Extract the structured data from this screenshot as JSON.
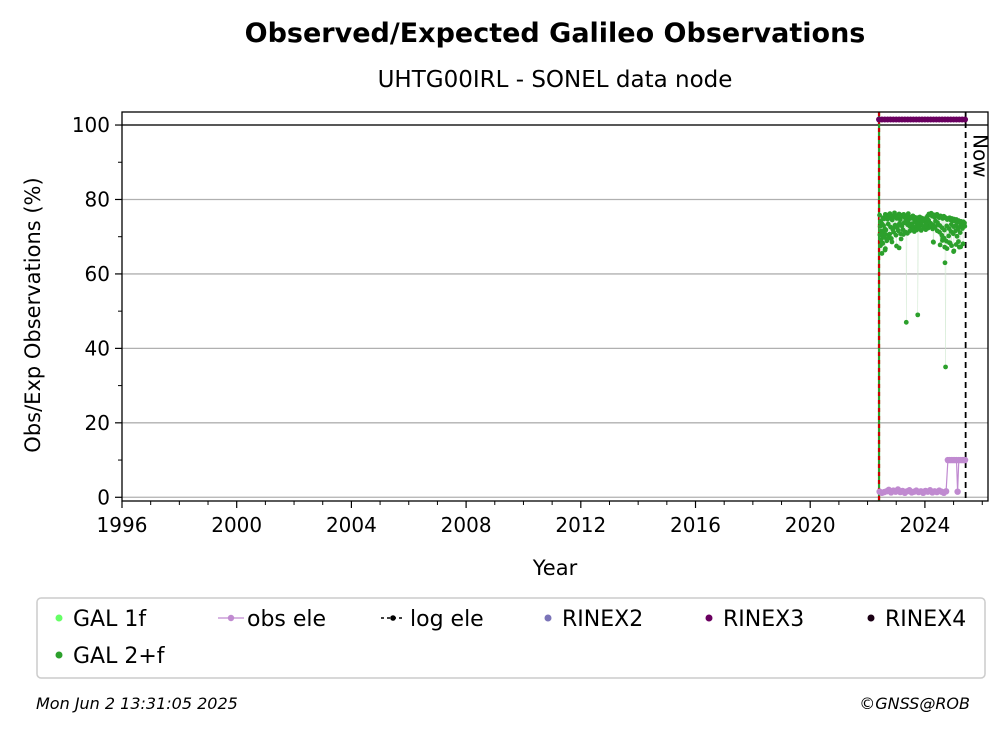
{
  "chart_data": {
    "type": "scatter",
    "title": "Observed/Expected Galileo Observations",
    "subtitle": "UHTG00IRL - SONEL data node",
    "xlabel": "Year",
    "ylabel": "Obs/Exp Observations (%)",
    "xlim": [
      1996,
      2026.2
    ],
    "ylim": [
      -1,
      103.5
    ],
    "x_ticks": [
      "1996",
      "2000",
      "2004",
      "2008",
      "2012",
      "2016",
      "2020",
      "2024"
    ],
    "y_ticks": [
      "0",
      "20",
      "40",
      "60",
      "80",
      "100"
    ],
    "grid": "horizontal",
    "reference_line_y": 100,
    "now_label": "Now",
    "now_x": 2025.42,
    "start_x": 2022.4,
    "legend_position": "bottom",
    "legend": [
      {
        "label": "GAL 1f",
        "color": "#66ff66",
        "marker": "dot"
      },
      {
        "label": "obs ele",
        "color": "#c08ad0",
        "marker": "line-dot"
      },
      {
        "label": "log ele",
        "color": "#000000",
        "marker": "dashed-dot"
      },
      {
        "label": "RINEX2",
        "color": "#7b74b8",
        "marker": "dot"
      },
      {
        "label": "RINEX3",
        "color": "#6a0060",
        "marker": "dot"
      },
      {
        "label": "RINEX4",
        "color": "#1a0014",
        "marker": "dot"
      },
      {
        "label": "GAL 2+f",
        "color": "#2ca02c",
        "marker": "dot"
      }
    ],
    "series": [
      {
        "name": "GAL 2+f",
        "color": "#2ca02c",
        "x": [
          2022.42,
          2022.46,
          2022.5,
          2022.54,
          2022.58,
          2022.62,
          2022.66,
          2022.7,
          2022.74,
          2022.78,
          2022.82,
          2022.86,
          2022.9,
          2022.94,
          2022.98,
          2023.02,
          2023.06,
          2023.1,
          2023.14,
          2023.18,
          2023.22,
          2023.26,
          2023.3,
          2023.34,
          2023.38,
          2023.42,
          2023.46,
          2023.5,
          2023.54,
          2023.58,
          2023.62,
          2023.66,
          2023.7,
          2023.74,
          2023.78,
          2023.82,
          2023.86,
          2023.9,
          2023.94,
          2023.98,
          2024.02,
          2024.06,
          2024.1,
          2024.14,
          2024.18,
          2024.22,
          2024.26,
          2024.3,
          2024.34,
          2024.38,
          2024.42,
          2024.46,
          2024.5,
          2024.54,
          2024.58,
          2024.62,
          2024.66,
          2024.7,
          2024.74,
          2024.78,
          2024.82,
          2024.86,
          2024.9,
          2024.94,
          2024.98,
          2025.02,
          2025.06,
          2025.1,
          2025.14,
          2025.18,
          2025.22,
          2025.26,
          2025.3,
          2025.34,
          2025.38,
          2022.44,
          2022.48,
          2022.52,
          2022.56,
          2022.6,
          2022.64,
          2022.72,
          2022.8,
          2022.88,
          2022.96,
          2023.04,
          2023.12,
          2023.2,
          2023.28,
          2023.4,
          2023.48,
          2023.56,
          2023.64,
          2023.72,
          2023.8,
          2023.88,
          2023.96,
          2024.04,
          2024.12,
          2024.2,
          2024.28,
          2024.36,
          2024.44,
          2024.52,
          2024.6,
          2024.68,
          2024.76,
          2024.84,
          2024.92,
          2025.0,
          2025.08,
          2025.16,
          2025.24,
          2025.32,
          2022.43,
          2022.47,
          2022.51,
          2022.55,
          2022.59,
          2022.63,
          2022.67,
          2022.75,
          2022.83,
          2022.91,
          2022.99,
          2023.07,
          2023.15,
          2023.23,
          2023.31,
          2023.39,
          2023.47,
          2023.55,
          2023.63,
          2023.71,
          2023.79,
          2023.87,
          2023.95,
          2024.03,
          2024.11,
          2024.19,
          2024.27,
          2024.35,
          2024.43,
          2024.51,
          2024.59,
          2024.67,
          2024.75,
          2024.83,
          2024.91,
          2024.99,
          2025.07,
          2025.15,
          2025.23,
          2025.31,
          2025.39,
          2022.45,
          2022.53,
          2022.61,
          2022.69,
          2022.77,
          2022.85,
          2022.93,
          2023.01,
          2023.09,
          2023.17,
          2023.25,
          2023.33,
          2023.41,
          2023.49,
          2023.57,
          2023.65,
          2023.73,
          2023.81,
          2023.89,
          2023.97,
          2024.05,
          2024.13,
          2024.21,
          2024.29,
          2024.37,
          2024.45,
          2024.53,
          2024.61,
          2024.69,
          2024.77,
          2024.85,
          2024.93,
          2025.01,
          2025.09,
          2025.17,
          2025.25,
          2025.33,
          2023.35,
          2023.75,
          2024.72,
          2024.7,
          2022.5,
          2022.62,
          2023.1,
          2024.3,
          2025.0,
          2025.2,
          2024.88,
          2024.62,
          2025.12
        ],
        "values": [
          75.8,
          74.2,
          73.5,
          75.1,
          74.8,
          76.0,
          75.3,
          74.7,
          75.9,
          76.2,
          75.0,
          74.5,
          75.6,
          76.4,
          75.2,
          74.9,
          75.7,
          76.1,
          74.6,
          75.4,
          75.8,
          76.0,
          75.1,
          74.8,
          75.5,
          76.2,
          75.3,
          74.9,
          75.0,
          75.6,
          74.7,
          75.2,
          74.4,
          75.1,
          74.8,
          75.3,
          74.6,
          75.0,
          74.5,
          74.2,
          74.8,
          75.2,
          75.6,
          76.1,
          75.8,
          76.3,
          75.5,
          75.9,
          75.2,
          75.7,
          76.0,
          75.4,
          75.1,
          75.6,
          75.3,
          74.9,
          75.5,
          75.2,
          75.0,
          74.6,
          74.8,
          75.1,
          74.5,
          74.9,
          74.3,
          74.7,
          74.2,
          74.6,
          73.9,
          74.3,
          73.8,
          74.1,
          73.6,
          74.0,
          73.7,
          72.8,
          71.5,
          70.2,
          73.0,
          72.1,
          71.8,
          73.4,
          72.6,
          71.9,
          73.1,
          72.4,
          73.6,
          72.9,
          73.8,
          73.2,
          72.7,
          73.5,
          72.3,
          73.0,
          72.8,
          73.3,
          72.5,
          73.1,
          72.9,
          73.6,
          73.2,
          72.6,
          73.8,
          73.0,
          72.4,
          71.8,
          72.9,
          72.2,
          73.3,
          72.7,
          73.0,
          72.4,
          72.9,
          73.1,
          70.5,
          69.2,
          68.4,
          71.0,
          69.8,
          70.6,
          68.9,
          70.1,
          69.5,
          71.2,
          70.4,
          71.6,
          70.8,
          71.9,
          71.3,
          70.9,
          71.5,
          72.0,
          71.4,
          71.8,
          72.2,
          71.7,
          72.4,
          71.9,
          72.3,
          72.6,
          72.1,
          72.5,
          71.6,
          71.2,
          70.4,
          69.6,
          68.8,
          70.2,
          71.4,
          70.8,
          71.6,
          72.0,
          71.1,
          72.2,
          72.8,
          67.6,
          68.2,
          66.4,
          69.3,
          70.7,
          68.6,
          72.5,
          67.5,
          73.2,
          69.4,
          70.6,
          73.7,
          74.1,
          73.4,
          72.8,
          74.0,
          73.6,
          74.3,
          73.9,
          72.7,
          73.5,
          74.4,
          72.9,
          68.6,
          74.2,
          73.3,
          67.8,
          69.0,
          67.2,
          66.8,
          68.4,
          67.6,
          66.2,
          67.9,
          68.7,
          67.3,
          68.1,
          47.0,
          49.0,
          35.0,
          63.0,
          65.5,
          66.8,
          67.0,
          68.5,
          66.0,
          67.2,
          68.3,
          69.6,
          70.1
        ]
      },
      {
        "name": "obs ele",
        "color": "#c08ad0",
        "x": [
          2022.42,
          2022.5,
          2022.58,
          2022.66,
          2022.74,
          2022.82,
          2022.9,
          2022.98,
          2023.06,
          2023.14,
          2023.22,
          2023.3,
          2023.38,
          2023.46,
          2023.54,
          2023.62,
          2023.7,
          2023.78,
          2023.86,
          2023.94,
          2024.02,
          2024.1,
          2024.18,
          2024.26,
          2024.34,
          2024.42,
          2024.5,
          2024.58,
          2024.66,
          2024.74,
          2024.8,
          2024.86,
          2024.92,
          2024.98,
          2025.04,
          2025.1,
          2025.14,
          2025.18,
          2025.24,
          2025.3,
          2025.36,
          2025.4
        ],
        "values": [
          1.5,
          1.2,
          1.4,
          1.6,
          2.0,
          1.3,
          1.8,
          1.5,
          2.1,
          1.4,
          1.7,
          1.2,
          1.6,
          1.9,
          1.3,
          1.5,
          1.8,
          1.4,
          1.6,
          1.2,
          1.7,
          1.5,
          1.9,
          1.3,
          1.6,
          1.4,
          1.8,
          1.5,
          1.2,
          1.6,
          10.0,
          10.0,
          10.0,
          10.0,
          10.0,
          10.0,
          1.5,
          10.0,
          10.0,
          10.0,
          10.0,
          10.0
        ]
      },
      {
        "name": "RINEX3",
        "color": "#6a0060",
        "x_start": 2022.4,
        "x_end": 2025.4,
        "values": [
          101.5
        ]
      }
    ]
  },
  "footer": {
    "date": "Mon Jun  2 13:31:05 2025",
    "credit": "©GNSS@ROB"
  }
}
